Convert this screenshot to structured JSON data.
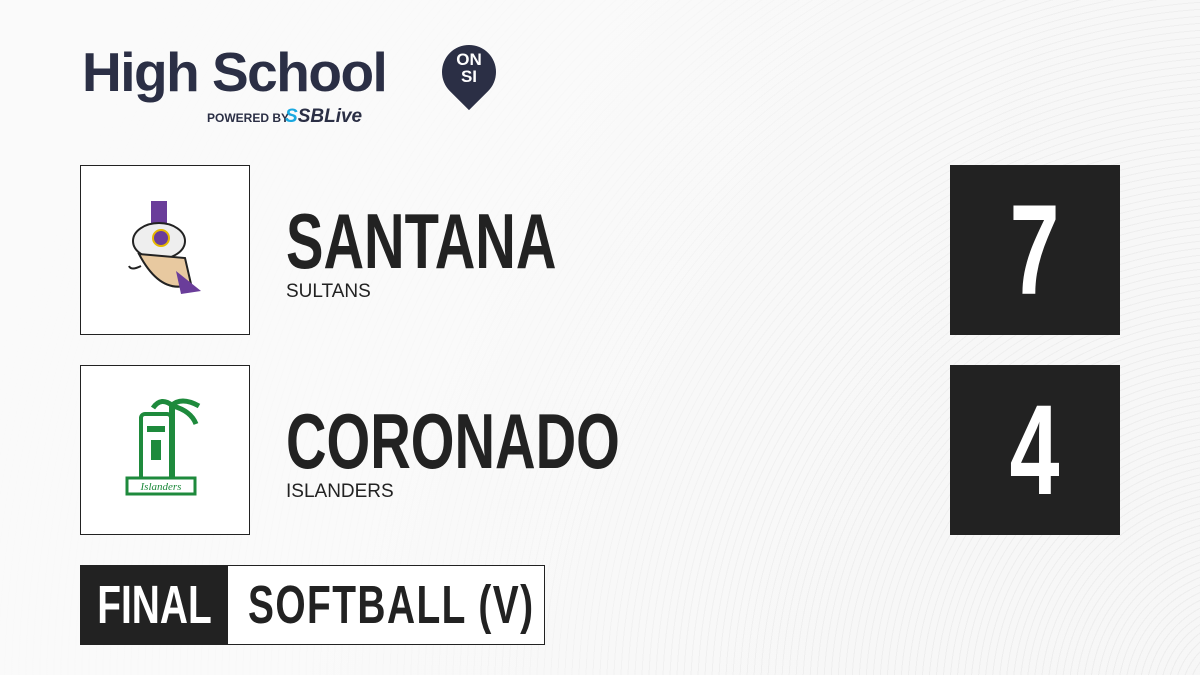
{
  "brand": {
    "title": "High School",
    "badge_top": "ON",
    "badge_bottom": "SI",
    "powered_by": "POWERED BY",
    "partner_prefix": "S",
    "partner": "SBLive"
  },
  "teams": [
    {
      "name": "SANTANA",
      "mascot": "SULTANS",
      "score": "7",
      "color": "#6a3d9a"
    },
    {
      "name": "CORONADO",
      "mascot": "ISLANDERS",
      "score": "4",
      "color": "#1e8a3c",
      "logo_text": "Islanders"
    }
  ],
  "status": {
    "label": "FINAL",
    "sport": "SOFTBALL (V)"
  }
}
